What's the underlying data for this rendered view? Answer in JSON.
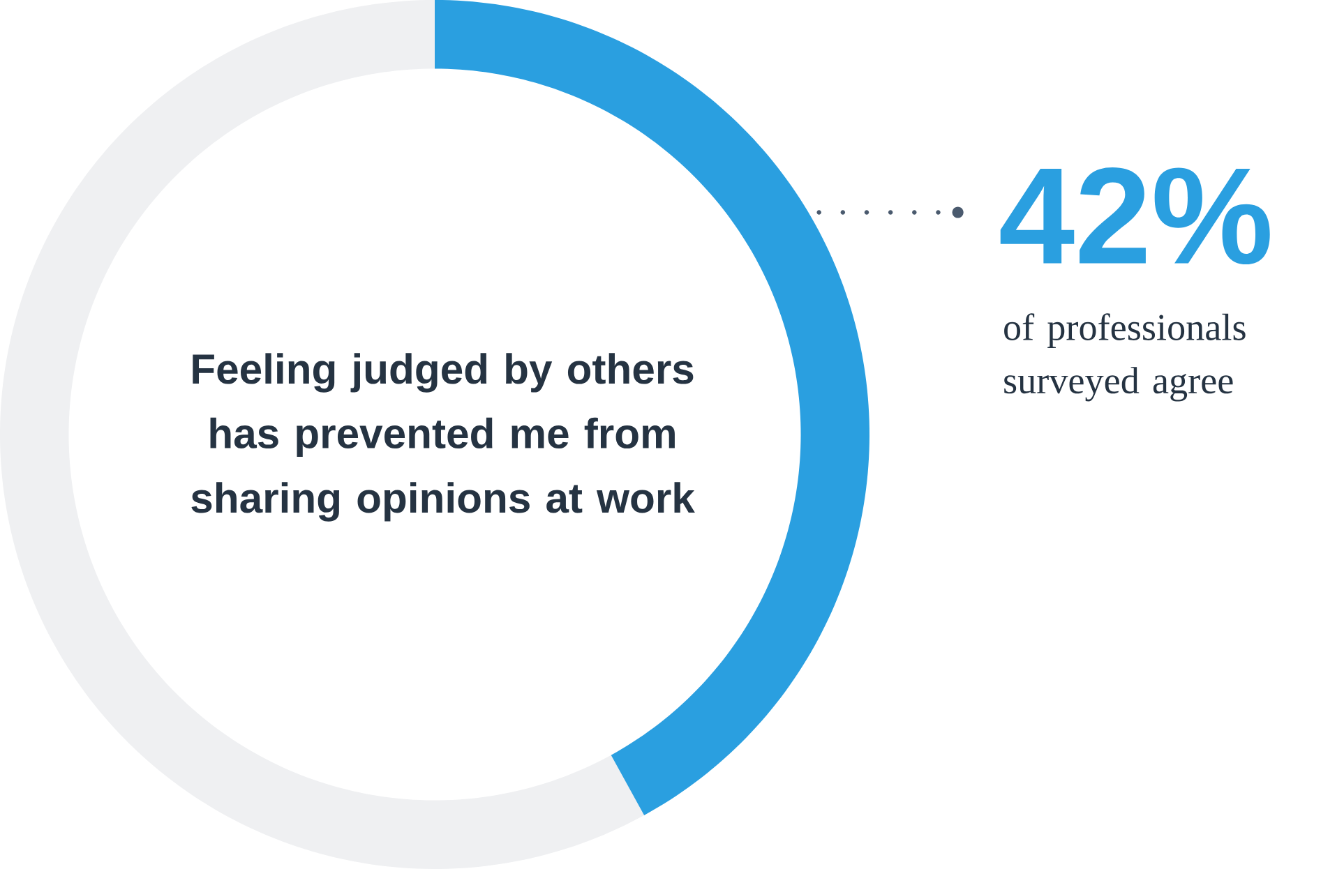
{
  "chart_data": {
    "type": "donut",
    "title": "Feeling judged by others has prevented me from sharing opinions at work",
    "categories": [
      null,
      null
    ],
    "values": [
      42,
      58
    ],
    "colors": [
      "#2a9fe0",
      "#eff0f2"
    ],
    "value_labels": [
      "42%",
      null
    ],
    "annotations": [
      "of professionals surveyed agree"
    ]
  }
}
